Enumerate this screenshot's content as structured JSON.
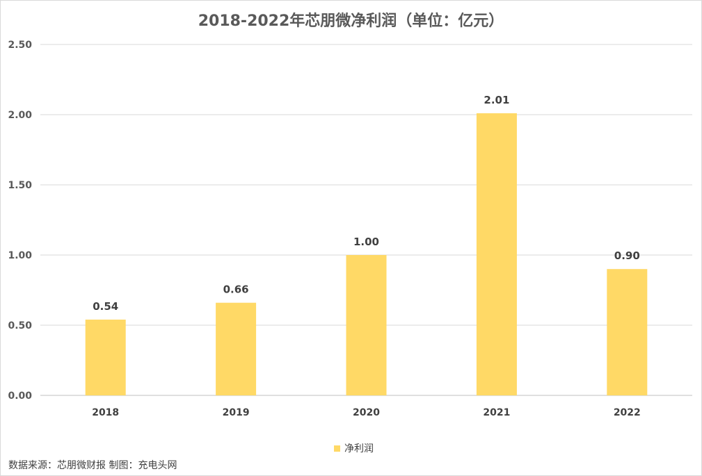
{
  "chart_data": {
    "type": "bar",
    "title": "2018-2022年芯朋微净利润（单位：亿元）",
    "categories": [
      "2018",
      "2019",
      "2020",
      "2021",
      "2022"
    ],
    "series": [
      {
        "name": "净利润",
        "values": [
          0.54,
          0.66,
          1.0,
          2.01,
          0.9
        ],
        "labels": [
          "0.54",
          "0.66",
          "1.00",
          "2.01",
          "0.90"
        ]
      }
    ],
    "ylim": [
      0,
      2.5
    ],
    "yticks": [
      "0.00",
      "0.50",
      "1.00",
      "1.50",
      "2.00",
      "2.50"
    ],
    "grid": true,
    "legend_position": "bottom",
    "bar_color": "#FFD966"
  },
  "footer": {
    "source": "数据来源：芯朋微财报 制图：充电头网"
  }
}
